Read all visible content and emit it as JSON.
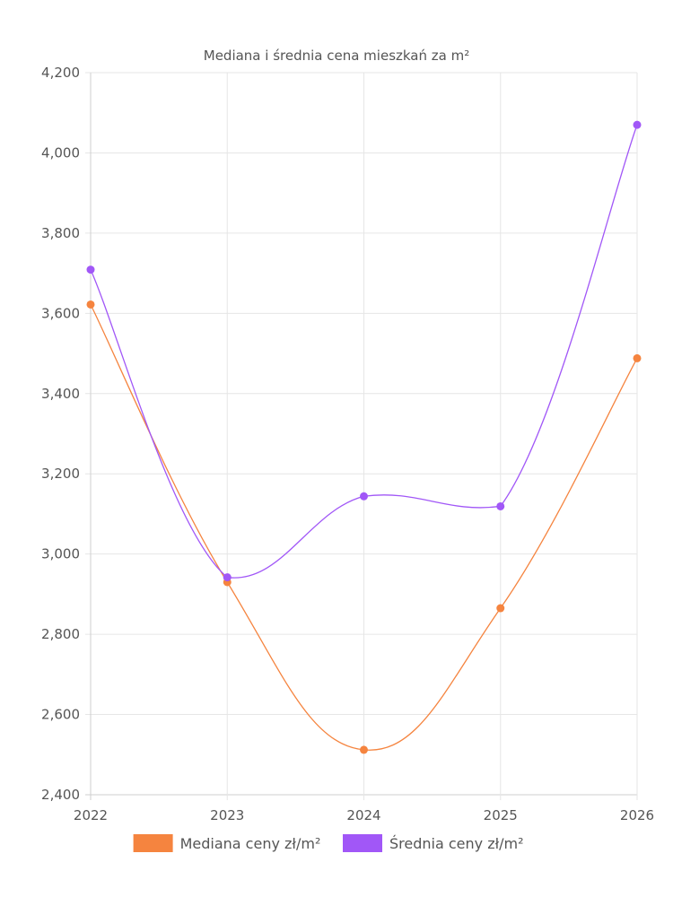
{
  "chart_data": {
    "type": "line",
    "title": "Mediana i średnia cena mieszkań za m²",
    "categories": [
      "2022",
      "2023",
      "2024",
      "2025",
      "2026"
    ],
    "series": [
      {
        "name": "Mediana ceny zł/m²",
        "color": "#F5843F",
        "values": [
          3622,
          2930,
          2512,
          2865,
          3488
        ]
      },
      {
        "name": "Średnia ceny zł/m²",
        "color": "#A157F7",
        "values": [
          3709,
          2942,
          3144,
          3119,
          4070
        ]
      }
    ],
    "ylim": [
      2400,
      4200
    ],
    "yticks": [
      "2,400",
      "2,600",
      "2,800",
      "3,000",
      "3,200",
      "3,400",
      "3,600",
      "3,800",
      "4,000",
      "4,200"
    ],
    "xlabel": "",
    "ylabel": "",
    "grid": true,
    "legend_position": "bottom"
  }
}
